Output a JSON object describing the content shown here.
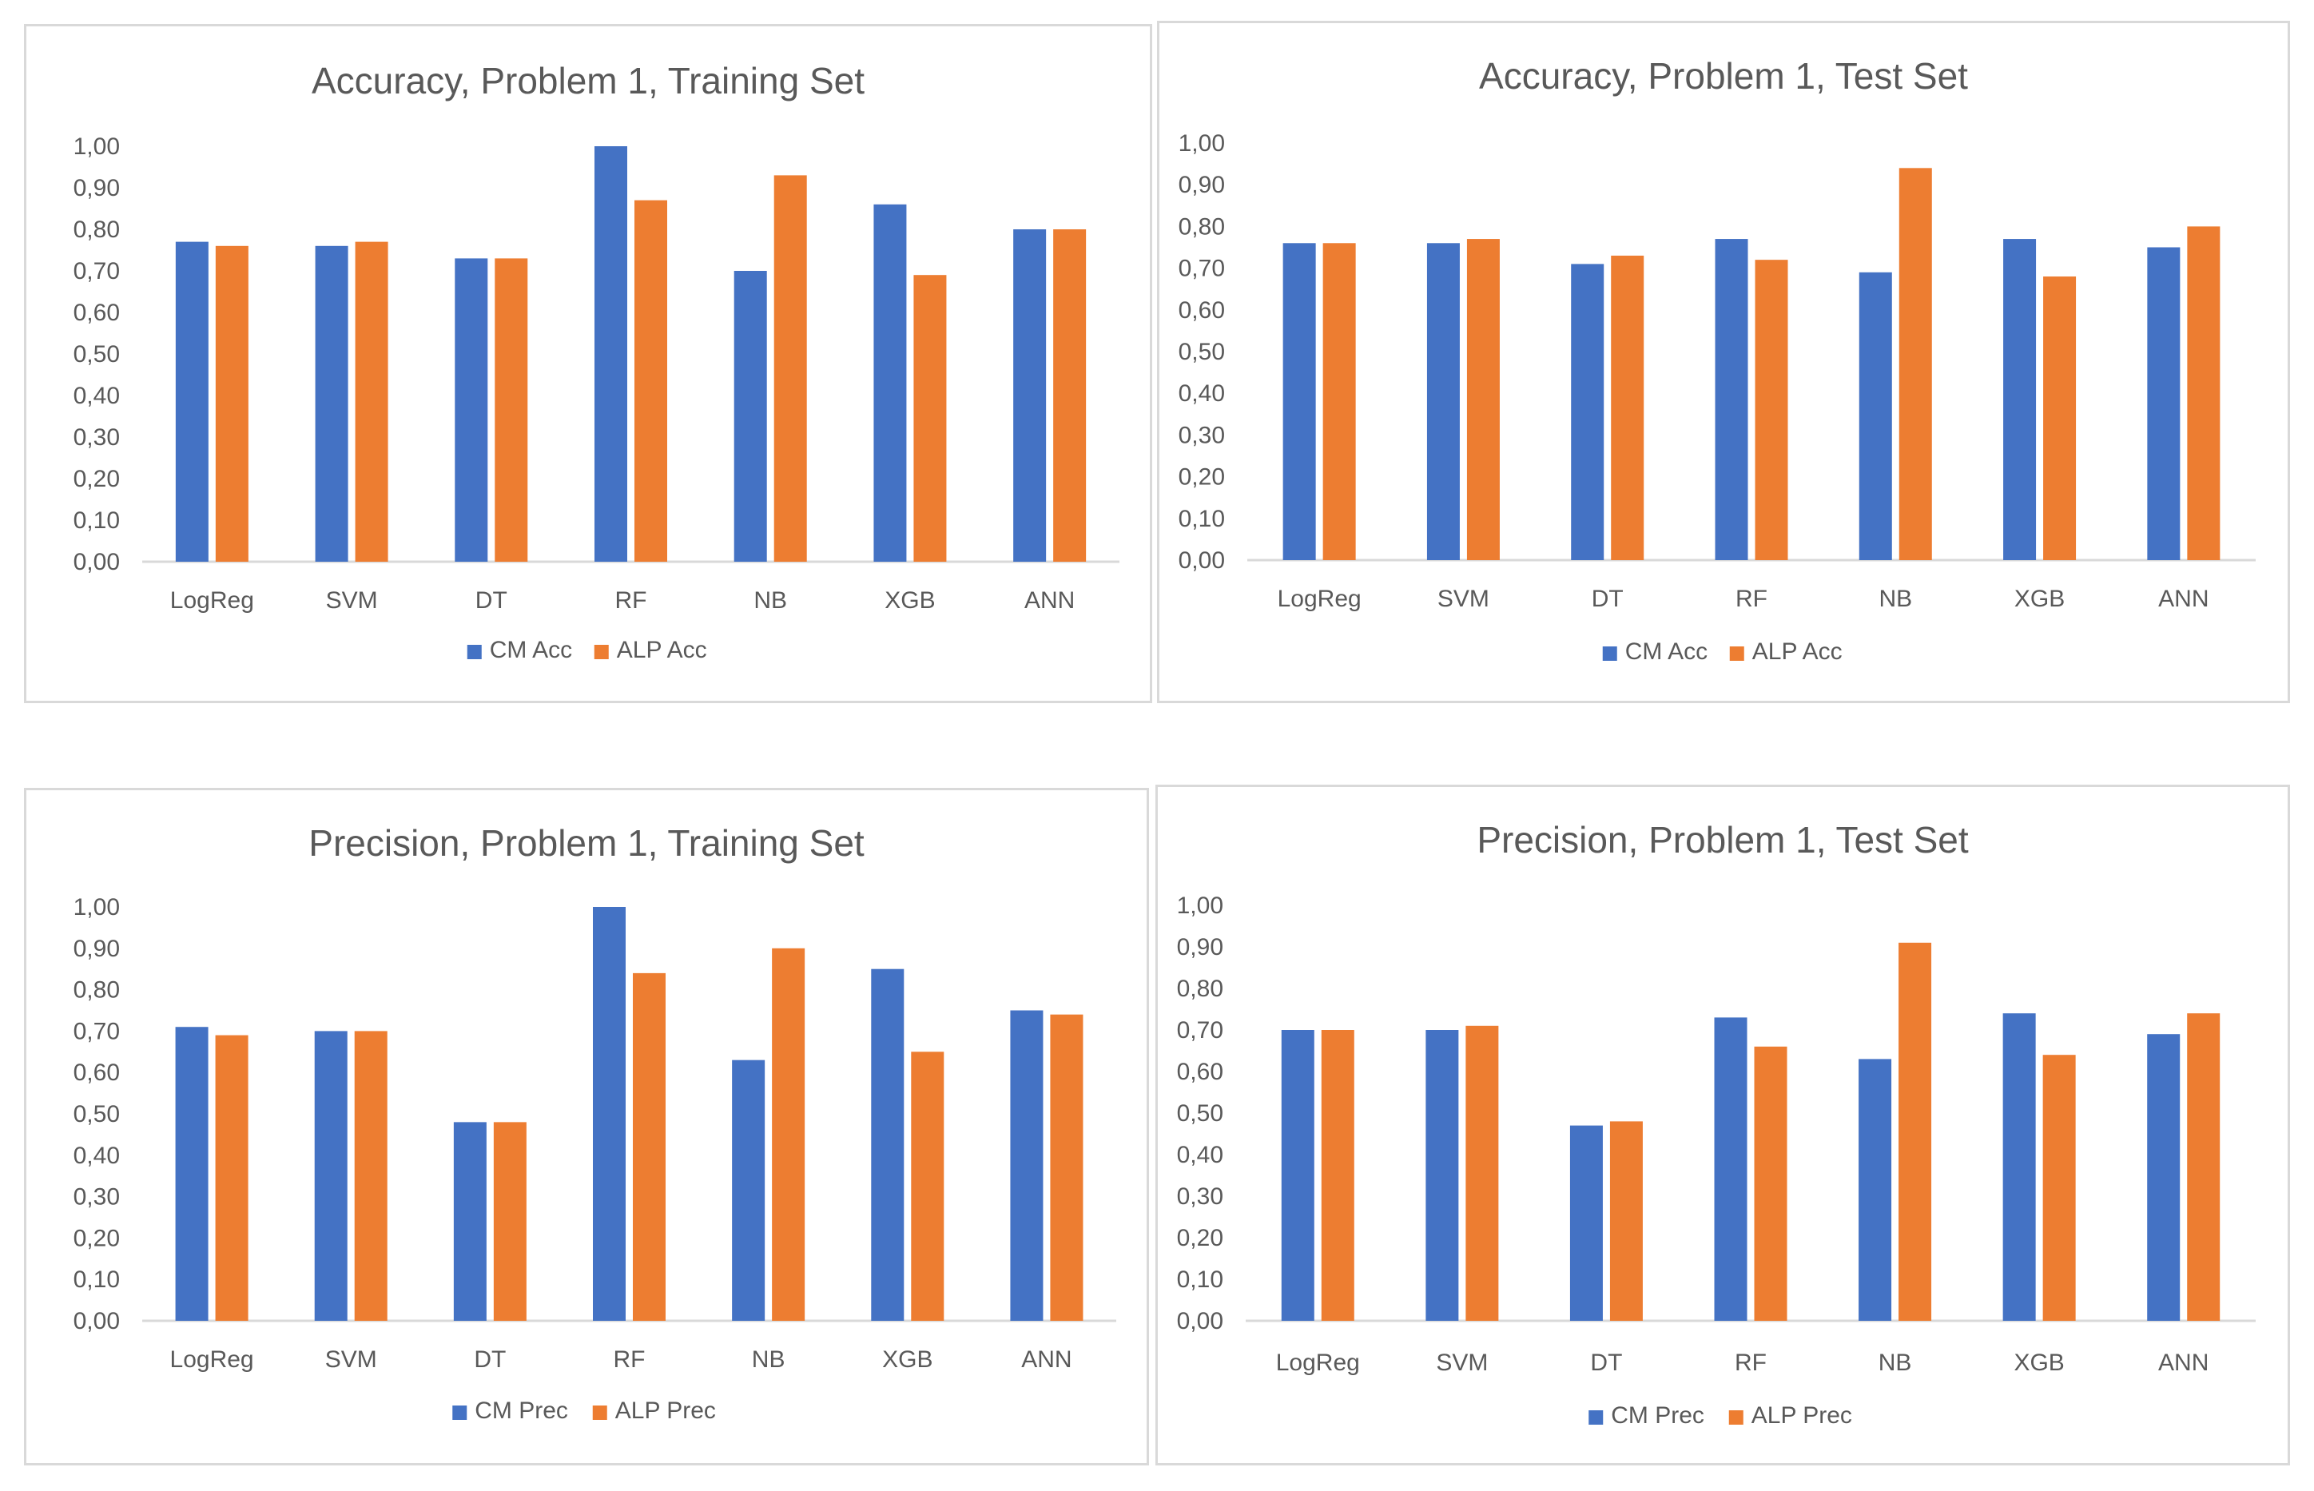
{
  "colors": {
    "series1": "#4472C4",
    "series2": "#ED7D31",
    "axis": "#d9d9d9",
    "text": "#595959"
  },
  "chart_data": [
    {
      "type": "bar",
      "title": "Accuracy, Problem 1, Training Set",
      "categories": [
        "LogReg",
        "SVM",
        "DT",
        "RF",
        "NB",
        "XGB",
        "ANN"
      ],
      "series": [
        {
          "name": "CM Acc",
          "values": [
            0.77,
            0.76,
            0.73,
            1.0,
            0.7,
            0.86,
            0.8
          ]
        },
        {
          "name": "ALP Acc",
          "values": [
            0.76,
            0.77,
            0.73,
            0.87,
            0.93,
            0.69,
            0.8
          ]
        }
      ],
      "yticks": [
        "0,00",
        "0,10",
        "0,20",
        "0,30",
        "0,40",
        "0,50",
        "0,60",
        "0,70",
        "0,80",
        "0,90",
        "1,00"
      ],
      "ylim": [
        0,
        1
      ],
      "xlabel": "",
      "ylabel": "",
      "legend": "bottom"
    },
    {
      "type": "bar",
      "title": "Accuracy, Problem 1, Test Set",
      "categories": [
        "LogReg",
        "SVM",
        "DT",
        "RF",
        "NB",
        "XGB",
        "ANN"
      ],
      "series": [
        {
          "name": "CM Acc",
          "values": [
            0.76,
            0.76,
            0.71,
            0.77,
            0.69,
            0.77,
            0.75
          ]
        },
        {
          "name": "ALP Acc",
          "values": [
            0.76,
            0.77,
            0.73,
            0.72,
            0.94,
            0.68,
            0.8
          ]
        }
      ],
      "yticks": [
        "0,00",
        "0,10",
        "0,20",
        "0,30",
        "0,40",
        "0,50",
        "0,60",
        "0,70",
        "0,80",
        "0,90",
        "1,00"
      ],
      "ylim": [
        0,
        1
      ],
      "xlabel": "",
      "ylabel": "",
      "legend": "bottom"
    },
    {
      "type": "bar",
      "title": "Precision, Problem 1, Training Set",
      "categories": [
        "LogReg",
        "SVM",
        "DT",
        "RF",
        "NB",
        "XGB",
        "ANN"
      ],
      "series": [
        {
          "name": "CM Prec",
          "values": [
            0.71,
            0.7,
            0.48,
            1.0,
            0.63,
            0.85,
            0.75
          ]
        },
        {
          "name": "ALP Prec",
          "values": [
            0.69,
            0.7,
            0.48,
            0.84,
            0.9,
            0.65,
            0.74
          ]
        }
      ],
      "yticks": [
        "0,00",
        "0,10",
        "0,20",
        "0,30",
        "0,40",
        "0,50",
        "0,60",
        "0,70",
        "0,80",
        "0,90",
        "1,00"
      ],
      "ylim": [
        0,
        1
      ],
      "xlabel": "",
      "ylabel": "",
      "legend": "bottom"
    },
    {
      "type": "bar",
      "title": "Precision, Problem 1, Test Set",
      "categories": [
        "LogReg",
        "SVM",
        "DT",
        "RF",
        "NB",
        "XGB",
        "ANN"
      ],
      "series": [
        {
          "name": "CM Prec",
          "values": [
            0.7,
            0.7,
            0.47,
            0.73,
            0.63,
            0.74,
            0.69
          ]
        },
        {
          "name": "ALP Prec",
          "values": [
            0.7,
            0.71,
            0.48,
            0.66,
            0.91,
            0.64,
            0.74
          ]
        }
      ],
      "yticks": [
        "0,00",
        "0,10",
        "0,20",
        "0,30",
        "0,40",
        "0,50",
        "0,60",
        "0,70",
        "0,80",
        "0,90",
        "1,00"
      ],
      "ylim": [
        0,
        1
      ],
      "xlabel": "",
      "ylabel": "",
      "legend": "bottom"
    }
  ]
}
